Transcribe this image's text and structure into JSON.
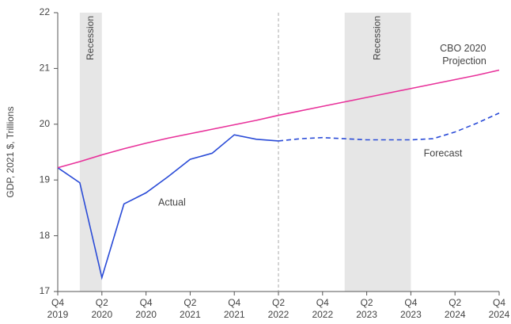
{
  "chart_data": {
    "type": "line",
    "y_label": "GDP, 2021 $, Trillions",
    "xlim": [
      0,
      20
    ],
    "ylim": [
      17,
      22
    ],
    "yticks": [
      17,
      18,
      19,
      20,
      21,
      22
    ],
    "xticks": [
      {
        "value": 0,
        "label": "Q4",
        "year": "2019"
      },
      {
        "value": 2,
        "label": "Q2",
        "year": "2020"
      },
      {
        "value": 4,
        "label": "Q4",
        "year": "2020"
      },
      {
        "value": 6,
        "label": "Q2",
        "year": "2021"
      },
      {
        "value": 8,
        "label": "Q4",
        "year": "2021"
      },
      {
        "value": 10,
        "label": "Q2",
        "year": "2022"
      },
      {
        "value": 12,
        "label": "Q4",
        "year": "2022"
      },
      {
        "value": 14,
        "label": "Q2",
        "year": "2023"
      },
      {
        "value": 16,
        "label": "Q4",
        "year": "2023"
      },
      {
        "value": 18,
        "label": "Q2",
        "year": "2024"
      },
      {
        "value": 20,
        "label": "Q4",
        "year": "2024"
      }
    ],
    "recessions": [
      {
        "start": 1,
        "end": 2,
        "label": "Recession"
      },
      {
        "start": 13,
        "end": 16,
        "label": "Recession"
      }
    ],
    "forecast_start": 10,
    "x": [
      0,
      1,
      2,
      3,
      4,
      5,
      6,
      7,
      8,
      9,
      10,
      11,
      12,
      13,
      14,
      15,
      16,
      17,
      18,
      19,
      20
    ],
    "series": [
      {
        "name": "Actual",
        "color": "#2a4bd7",
        "dashed": false,
        "values": [
          19.22,
          18.95,
          17.25,
          18.57,
          18.77,
          19.06,
          19.37,
          19.48,
          19.81,
          19.73,
          19.7,
          null,
          null,
          null,
          null,
          null,
          null,
          null,
          null,
          null,
          null
        ]
      },
      {
        "name": "Forecast",
        "color": "#2a4bd7",
        "dashed": true,
        "values": [
          null,
          null,
          null,
          null,
          null,
          null,
          null,
          null,
          null,
          null,
          19.7,
          19.74,
          19.76,
          19.74,
          19.72,
          19.72,
          19.72,
          19.74,
          19.86,
          20.02,
          20.2
        ]
      },
      {
        "name": "CBO 2020 Projection",
        "color": "#e8319a",
        "dashed": false,
        "values": [
          19.22,
          19.33,
          19.45,
          19.56,
          19.66,
          19.75,
          19.83,
          19.91,
          19.99,
          20.07,
          20.16,
          20.24,
          20.32,
          20.4,
          20.48,
          20.56,
          20.64,
          20.72,
          20.8,
          20.88,
          20.97
        ]
      }
    ]
  }
}
